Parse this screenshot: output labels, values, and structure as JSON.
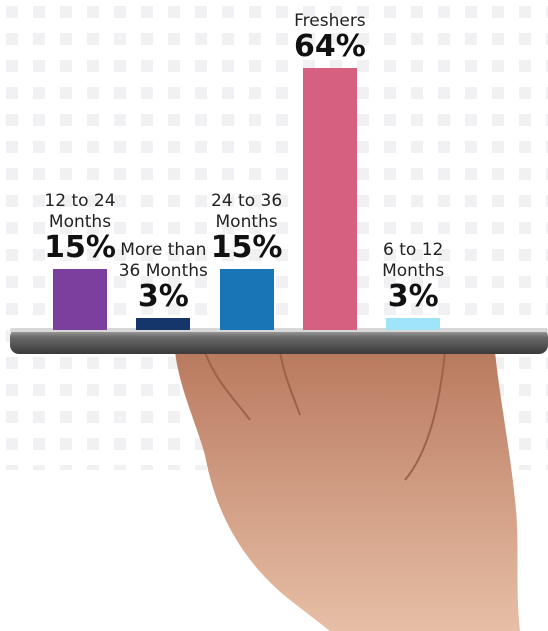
{
  "chart_data": {
    "type": "bar",
    "categories": [
      "12 to 24 Months",
      "More than 36 Months",
      "24 to 36 Months",
      "Freshers",
      "6 to 12 Months"
    ],
    "values": [
      15,
      3,
      15,
      64,
      3
    ],
    "value_labels": [
      "15%",
      "3%",
      "15%",
      "64%",
      "3%"
    ],
    "colors": [
      "#7b3f9e",
      "#14366a",
      "#1a75b7",
      "#d6607f",
      "#9fe4f8"
    ]
  }
}
